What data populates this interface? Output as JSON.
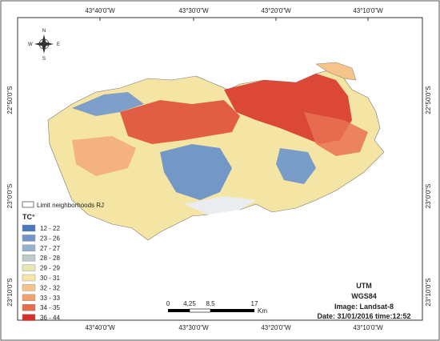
{
  "map": {
    "coordinates": {
      "top": [
        "43°40'0\"W",
        "43°30'0\"W",
        "43°20'0\"W",
        "43°10'0\"W"
      ],
      "bottom": [
        "43°40'0\"W",
        "43°30'0\"W",
        "43°20'0\"W",
        "43°10'0\"W"
      ],
      "left": [
        "22°50'0\"S",
        "23°0'0\"S",
        "23°10'0\"S"
      ],
      "right": [
        "22°50'0\"S",
        "23°0'0\"S",
        "23°10'0\"S"
      ]
    },
    "compass": [
      "N",
      "S",
      "E",
      "W"
    ],
    "legend": {
      "boundary": "Limit neighborhoods RJ",
      "title": "TC°",
      "classes": [
        {
          "label": "12 - 22",
          "color": "#4a78b8"
        },
        {
          "label": "23 - 26",
          "color": "#7095c6"
        },
        {
          "label": "27 - 27",
          "color": "#94b1cf"
        },
        {
          "label": "28 - 28",
          "color": "#bccbcb"
        },
        {
          "label": "29 - 29",
          "color": "#e8e7b4"
        },
        {
          "label": "30 - 31",
          "color": "#f7e6a6"
        },
        {
          "label": "32 - 32",
          "color": "#f6c48b"
        },
        {
          "label": "33 - 33",
          "color": "#f2a06f"
        },
        {
          "label": "34 - 35",
          "color": "#e76a4b"
        },
        {
          "label": "36 - 44",
          "color": "#d6302a"
        }
      ]
    },
    "scale_bar": {
      "labels": [
        "0",
        "4,25",
        "8,5",
        "17"
      ],
      "unit": "Km"
    },
    "info": [
      "UTM",
      "WGS84",
      "Image: Landsat-8",
      "Date: 31/01/2016 time:12:52"
    ]
  }
}
